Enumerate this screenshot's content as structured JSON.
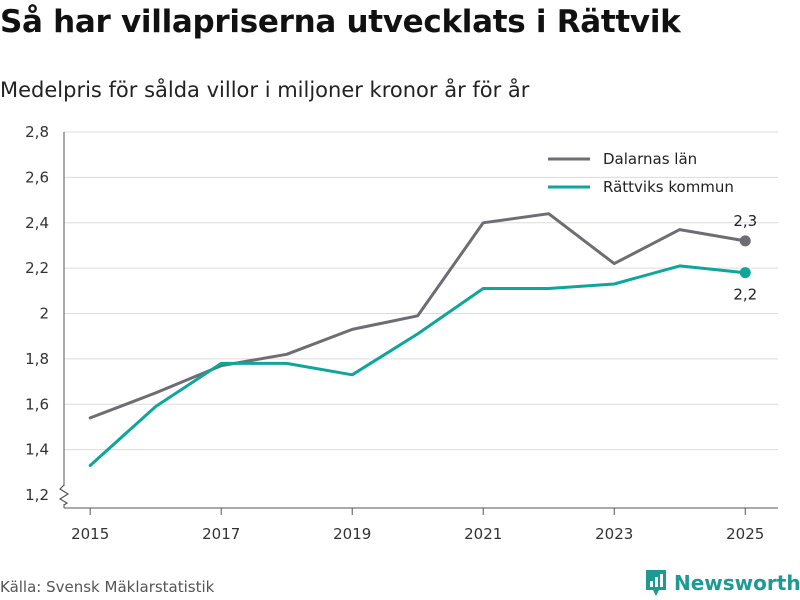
{
  "title": "Så har villapriserna utvecklats i Rättvik",
  "subtitle": "Medelpris för sålda villor i miljoner kronor år för år",
  "source": "Källa: Svensk Mäklarstatistik",
  "brand": {
    "name": "Newsworthy",
    "icon": "newsworthy-logo-icon",
    "color": "#1e9a94"
  },
  "chart_data": {
    "type": "line",
    "x": [
      2015,
      2016,
      2017,
      2018,
      2019,
      2020,
      2021,
      2022,
      2023,
      2024,
      2025
    ],
    "x_tick_labels": [
      "2015",
      "2017",
      "2019",
      "2021",
      "2023",
      "2025"
    ],
    "x_tick_values": [
      2015,
      2017,
      2019,
      2021,
      2023,
      2025
    ],
    "y_tick_labels": [
      "1,2",
      "1,4",
      "1,6",
      "1,8",
      "2",
      "2,2",
      "2,4",
      "2,6",
      "2,8"
    ],
    "y_tick_values": [
      1.2,
      1.4,
      1.6,
      1.8,
      2.0,
      2.2,
      2.4,
      2.6,
      2.8
    ],
    "ylim": [
      1.2,
      2.8
    ],
    "xlim": [
      2014.6,
      2025.5
    ],
    "grid": true,
    "axis_break": true,
    "legend_position": "top-right",
    "series": [
      {
        "name": "Dalarnas län",
        "color": "#6d6d73",
        "values": [
          1.54,
          1.65,
          1.77,
          1.82,
          1.93,
          1.99,
          2.4,
          2.44,
          2.22,
          2.37,
          2.32
        ],
        "end_label": "2,3",
        "end_label_position": "above"
      },
      {
        "name": "Rättviks kommun",
        "color": "#0ea69a",
        "values": [
          1.33,
          1.59,
          1.78,
          1.78,
          1.73,
          1.91,
          2.11,
          2.11,
          2.13,
          2.21,
          2.18
        ],
        "end_label": "2,2",
        "end_label_position": "below"
      }
    ]
  }
}
